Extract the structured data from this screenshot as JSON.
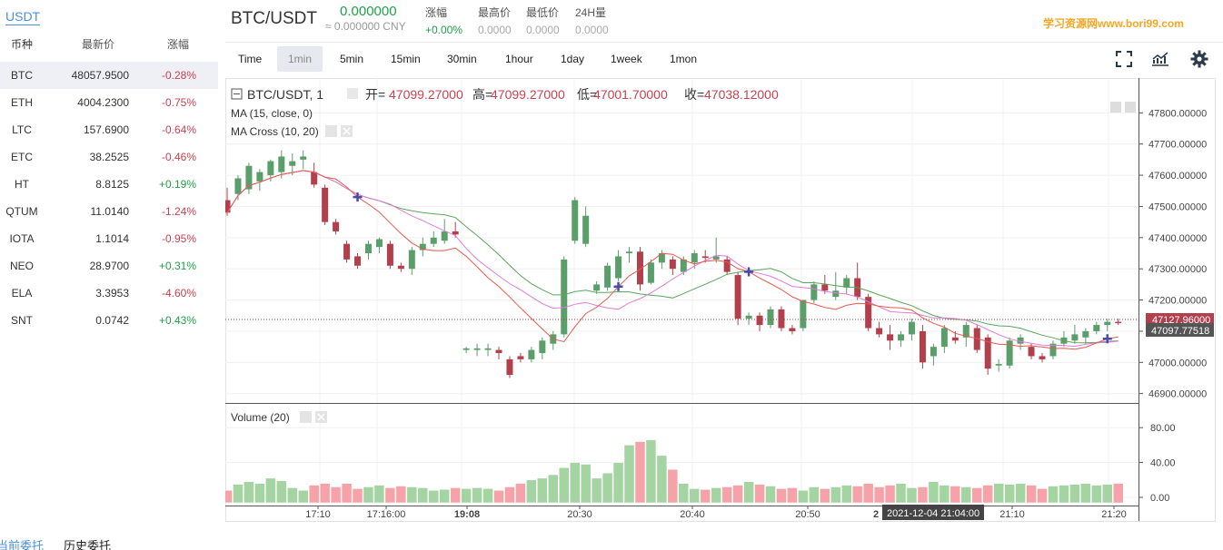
{
  "market": {
    "quote_tab": "USDT",
    "headers": {
      "symbol": "币种",
      "price": "最新价",
      "change": "涨幅"
    },
    "rows": [
      {
        "symbol": "BTC",
        "price": "48057.9500",
        "change": "-0.28%",
        "dir": "down"
      },
      {
        "symbol": "ETH",
        "price": "4004.2300",
        "change": "-0.75%",
        "dir": "down"
      },
      {
        "symbol": "LTC",
        "price": "157.6900",
        "change": "-0.64%",
        "dir": "down"
      },
      {
        "symbol": "ETC",
        "price": "38.2525",
        "change": "-0.46%",
        "dir": "down"
      },
      {
        "symbol": "HT",
        "price": "8.8125",
        "change": "+0.19%",
        "dir": "up"
      },
      {
        "symbol": "QTUM",
        "price": "11.0140",
        "change": "-1.24%",
        "dir": "down"
      },
      {
        "symbol": "IOTA",
        "price": "1.1014",
        "change": "-0.95%",
        "dir": "down"
      },
      {
        "symbol": "NEO",
        "price": "28.9700",
        "change": "+0.31%",
        "dir": "up"
      },
      {
        "symbol": "ELA",
        "price": "3.3953",
        "change": "-4.60%",
        "dir": "down"
      },
      {
        "symbol": "SNT",
        "price": "0.0742",
        "change": "+0.43%",
        "dir": "up"
      }
    ]
  },
  "ticker": {
    "pair": "BTC/USDT",
    "last_price": "0.000000",
    "cny_price": "≈ 0.000000 CNY",
    "stats": [
      {
        "label": "涨幅",
        "value": "+0.00%"
      },
      {
        "label": "最高价",
        "value": "0.0000"
      },
      {
        "label": "最低价",
        "value": "0.0000"
      },
      {
        "label": "24H量",
        "value": "0.0000"
      }
    ],
    "watermark": "学习资源网www.bori99.com"
  },
  "toolbar": {
    "timeframes": [
      "Time",
      "1min",
      "5min",
      "15min",
      "30min",
      "1hour",
      "1day",
      "1week",
      "1mon"
    ],
    "active": "1min",
    "icons": [
      "fullscreen-icon",
      "indicators-icon",
      "settings-icon"
    ]
  },
  "chart": {
    "legend_title": "BTC/USDT, 1",
    "ohlc": [
      {
        "label": "开=",
        "value": "47099.27000"
      },
      {
        "label": "高=",
        "value": "47099.27000"
      },
      {
        "label": "低=",
        "value": "47001.70000"
      },
      {
        "label": "收=",
        "value": "47038.12000"
      }
    ],
    "ma_label": "MA (15, close, 0)",
    "ma_cross_label": "MA Cross (10, 20)",
    "volume_label": "Volume (20)",
    "price_ticks": [
      "47800.00000",
      "47700.00000",
      "47600.00000",
      "47500.00000",
      "47400.00000",
      "47300.00000",
      "47200.00000",
      "47100.00000",
      "47000.00000",
      "46900.00000"
    ],
    "current_price_badge": "47127.96000",
    "ma_price_badge": "47097.77518",
    "volume_ticks": [
      "80.00",
      "40.00",
      "0.00"
    ],
    "time_ticks": [
      "17:10",
      "17:16:00",
      "19:08",
      "20:30",
      "20:40",
      "20:50",
      "21:10",
      "21:20"
    ],
    "time_tick_prefix": "2",
    "crosshair_time": "2021-12-04 21:04:00",
    "colors": {
      "up": "#5a9e6a",
      "down": "#b2404c",
      "vol_up": "#a3d4a2",
      "vol_down": "#f5a3a8",
      "ma_fast": "#e8584f",
      "ma_slow": "#5aa65b",
      "ma15": "#e37bd9",
      "cross": "#4a4aa8"
    }
  },
  "chart_data": {
    "type": "candlestick",
    "title": "BTC/USDT, 1",
    "ylim": [
      46870,
      47830
    ],
    "candles": [
      [
        47520,
        47560,
        47470,
        47480
      ],
      [
        47540,
        47600,
        47520,
        47590
      ],
      [
        47555,
        47640,
        47540,
        47630
      ],
      [
        47580,
        47620,
        47550,
        47610
      ],
      [
        47600,
        47650,
        47580,
        47645
      ],
      [
        47610,
        47680,
        47590,
        47660
      ],
      [
        47630,
        47670,
        47600,
        47645
      ],
      [
        47650,
        47680,
        47620,
        47660
      ],
      [
        47610,
        47640,
        47560,
        47570
      ],
      [
        47560,
        47570,
        47440,
        47450
      ],
      [
        47450,
        47460,
        47410,
        47420
      ],
      [
        47380,
        47390,
        47320,
        47330
      ],
      [
        47340,
        47350,
        47300,
        47310
      ],
      [
        47350,
        47390,
        47330,
        47380
      ],
      [
        47370,
        47400,
        47350,
        47395
      ],
      [
        47380,
        47390,
        47300,
        47310
      ],
      [
        47310,
        47320,
        47290,
        47300
      ],
      [
        47300,
        47370,
        47280,
        47360
      ],
      [
        47360,
        47400,
        47340,
        47380
      ],
      [
        47380,
        47420,
        47370,
        47400
      ],
      [
        47390,
        47460,
        47380,
        47420
      ],
      [
        47420,
        47450,
        47400,
        47410
      ],
      [
        47040,
        47050,
        47030,
        47045
      ],
      [
        47040,
        47060,
        47020,
        47045
      ],
      [
        47040,
        47060,
        47020,
        47045
      ],
      [
        47040,
        47050,
        47010,
        47030
      ],
      [
        47010,
        47020,
        46950,
        46960
      ],
      [
        47020,
        47030,
        47000,
        47010
      ],
      [
        47010,
        47050,
        47000,
        47040
      ],
      [
        47030,
        47080,
        47010,
        47070
      ],
      [
        47060,
        47100,
        47040,
        47090
      ],
      [
        47090,
        47340,
        47080,
        47330
      ],
      [
        47390,
        47530,
        47380,
        47520
      ],
      [
        47380,
        47500,
        47370,
        47470
      ],
      [
        47230,
        47260,
        47220,
        47250
      ],
      [
        47240,
        47320,
        47230,
        47310
      ],
      [
        47270,
        47360,
        47260,
        47340
      ],
      [
        47350,
        47370,
        47320,
        47355
      ],
      [
        47355,
        47370,
        47230,
        47250
      ],
      [
        47255,
        47330,
        47250,
        47320
      ],
      [
        47320,
        47360,
        47300,
        47350
      ],
      [
        47330,
        47340,
        47280,
        47300
      ],
      [
        47290,
        47340,
        47280,
        47330
      ],
      [
        47320,
        47360,
        47300,
        47350
      ],
      [
        47340,
        47360,
        47320,
        47335
      ],
      [
        47330,
        47400,
        47320,
        47340
      ],
      [
        47330,
        47340,
        47280,
        47290
      ],
      [
        47280,
        47290,
        47120,
        47140
      ],
      [
        47140,
        47160,
        47120,
        47150
      ],
      [
        47150,
        47160,
        47100,
        47120
      ],
      [
        47120,
        47180,
        47110,
        47170
      ],
      [
        47170,
        47180,
        47100,
        47110
      ],
      [
        47110,
        47120,
        47090,
        47100
      ],
      [
        47110,
        47200,
        47100,
        47200
      ],
      [
        47200,
        47260,
        47190,
        47250
      ],
      [
        47250,
        47280,
        47220,
        47230
      ],
      [
        47210,
        47290,
        47200,
        47230
      ],
      [
        47240,
        47280,
        47220,
        47270
      ],
      [
        47270,
        47320,
        47200,
        47210
      ],
      [
        47210,
        47220,
        47100,
        47110
      ],
      [
        47110,
        47130,
        47080,
        47090
      ],
      [
        47090,
        47120,
        47040,
        47070
      ],
      [
        47070,
        47100,
        47050,
        47090
      ],
      [
        47090,
        47140,
        47070,
        47130
      ],
      [
        47100,
        47120,
        46980,
        47000
      ],
      [
        47020,
        47060,
        46990,
        47050
      ],
      [
        47050,
        47120,
        47030,
        47110
      ],
      [
        47080,
        47100,
        47060,
        47070
      ],
      [
        47080,
        47130,
        47050,
        47120
      ],
      [
        47110,
        47120,
        47030,
        47040
      ],
      [
        47080,
        47090,
        46960,
        46980
      ],
      [
        46990,
        47010,
        46970,
        46995
      ],
      [
        46990,
        47080,
        46980,
        47070
      ],
      [
        47060,
        47090,
        47040,
        47080
      ],
      [
        47050,
        47060,
        47010,
        47020
      ],
      [
        47020,
        47030,
        47000,
        47010
      ],
      [
        47020,
        47070,
        47010,
        47060
      ],
      [
        47060,
        47100,
        47050,
        47080
      ],
      [
        47070,
        47120,
        47060,
        47090
      ],
      [
        47080,
        47110,
        47060,
        47100
      ],
      [
        47100,
        47130,
        47090,
        47120
      ],
      [
        47120,
        47140,
        47100,
        47130
      ],
      [
        47130,
        47140,
        47120,
        47128
      ]
    ],
    "volume": [
      8,
      15,
      18,
      16,
      22,
      19,
      11,
      8,
      14,
      16,
      12,
      16,
      10,
      12,
      14,
      11,
      13,
      12,
      11,
      8,
      9,
      11,
      10,
      11,
      10,
      8,
      12,
      16,
      20,
      22,
      26,
      34,
      40,
      38,
      22,
      28,
      40,
      60,
      64,
      66,
      48,
      32,
      16,
      10,
      9,
      11,
      12,
      14,
      18,
      15,
      13,
      10,
      11,
      8,
      12,
      10,
      12,
      14,
      13,
      16,
      12,
      14,
      16,
      11,
      12,
      18,
      14,
      13,
      12,
      11,
      14,
      16,
      15,
      16,
      14,
      10,
      13,
      14,
      15,
      16,
      14,
      15,
      16
    ]
  }
}
